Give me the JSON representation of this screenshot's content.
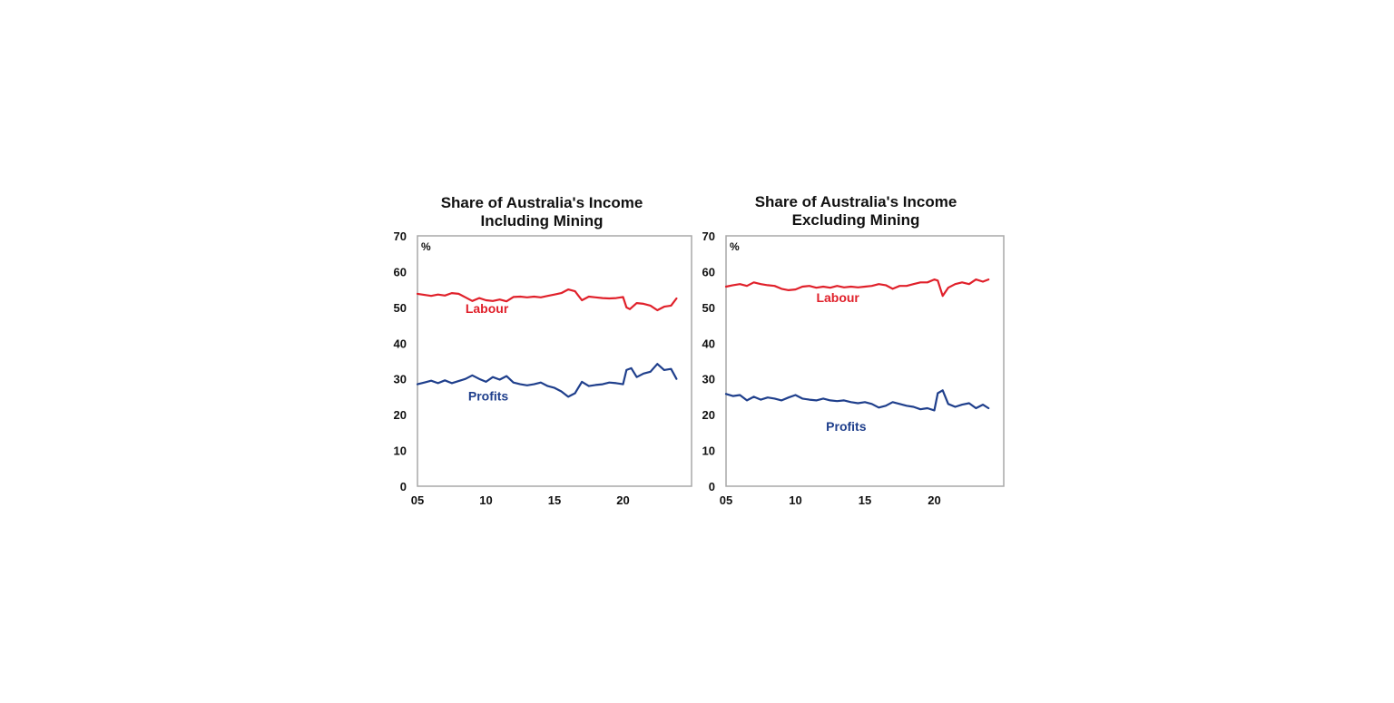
{
  "chart_data": [
    {
      "type": "line",
      "title": [
        "Share of Australia's Income",
        "Including Mining"
      ],
      "unit_label": "%",
      "x_tick_labels": [
        "05",
        "10",
        "15",
        "20"
      ],
      "x_ticks": [
        2005,
        2010,
        2015,
        2020
      ],
      "xlim": [
        2005,
        2025
      ],
      "y_ticks": [
        0,
        10,
        20,
        30,
        40,
        50,
        60,
        70
      ],
      "ylim": [
        0,
        70
      ],
      "grid": false,
      "series": [
        {
          "name": "Labour",
          "color": "#e0202a",
          "x": [
            2005.0,
            2005.5,
            2006.0,
            2006.5,
            2007.0,
            2007.5,
            2008.0,
            2008.5,
            2009.0,
            2009.5,
            2010.0,
            2010.5,
            2011.0,
            2011.5,
            2012.0,
            2012.5,
            2013.0,
            2013.5,
            2014.0,
            2014.5,
            2015.0,
            2015.5,
            2016.0,
            2016.5,
            2017.0,
            2017.5,
            2018.0,
            2018.5,
            2019.0,
            2019.5,
            2020.0,
            2020.25,
            2020.5,
            2021.0,
            2021.5,
            2022.0,
            2022.5,
            2023.0,
            2023.5,
            2023.9
          ],
          "values": [
            53.8,
            53.5,
            53.2,
            53.6,
            53.3,
            54.0,
            53.8,
            52.8,
            51.8,
            52.6,
            52.0,
            51.8,
            52.2,
            51.7,
            52.9,
            53.0,
            52.8,
            53.0,
            52.8,
            53.2,
            53.6,
            54.0,
            55.0,
            54.5,
            52.0,
            53.0,
            52.8,
            52.6,
            52.5,
            52.6,
            52.9,
            50.0,
            49.5,
            51.2,
            51.0,
            50.5,
            49.2,
            50.2,
            50.5,
            52.5
          ]
        },
        {
          "name": "Profits",
          "color": "#1f3f8c",
          "x": [
            2005.0,
            2005.5,
            2006.0,
            2006.5,
            2007.0,
            2007.5,
            2008.0,
            2008.5,
            2009.0,
            2009.5,
            2010.0,
            2010.5,
            2011.0,
            2011.5,
            2012.0,
            2012.5,
            2013.0,
            2013.5,
            2014.0,
            2014.5,
            2015.0,
            2015.5,
            2016.0,
            2016.5,
            2017.0,
            2017.5,
            2018.0,
            2018.5,
            2019.0,
            2019.5,
            2020.0,
            2020.25,
            2020.6,
            2021.0,
            2021.5,
            2022.0,
            2022.5,
            2023.0,
            2023.5,
            2023.9
          ],
          "values": [
            28.5,
            29.0,
            29.5,
            28.8,
            29.6,
            28.8,
            29.4,
            30.0,
            31.0,
            30.0,
            29.2,
            30.5,
            29.8,
            30.8,
            29.0,
            28.5,
            28.2,
            28.5,
            29.0,
            28.0,
            27.5,
            26.5,
            25.0,
            26.0,
            29.2,
            28.0,
            28.3,
            28.5,
            29.0,
            28.8,
            28.5,
            32.5,
            33.0,
            30.5,
            31.5,
            32.0,
            34.2,
            32.5,
            32.8,
            30.0
          ]
        }
      ]
    },
    {
      "type": "line",
      "title": [
        "Share of Australia's Income",
        "Excluding Mining"
      ],
      "unit_label": "%",
      "x_tick_labels": [
        "05",
        "10",
        "15",
        "20"
      ],
      "x_ticks": [
        2005,
        2010,
        2015,
        2020
      ],
      "xlim": [
        2005,
        2025
      ],
      "y_ticks": [
        0,
        10,
        20,
        30,
        40,
        50,
        60,
        70
      ],
      "ylim": [
        0,
        70
      ],
      "grid": false,
      "series": [
        {
          "name": "Labour",
          "color": "#e0202a",
          "x": [
            2005.0,
            2005.5,
            2006.0,
            2006.5,
            2007.0,
            2007.5,
            2008.0,
            2008.5,
            2009.0,
            2009.5,
            2010.0,
            2010.5,
            2011.0,
            2011.5,
            2012.0,
            2012.5,
            2013.0,
            2013.5,
            2014.0,
            2014.5,
            2015.0,
            2015.5,
            2016.0,
            2016.5,
            2017.0,
            2017.5,
            2018.0,
            2018.5,
            2019.0,
            2019.5,
            2020.0,
            2020.25,
            2020.6,
            2021.0,
            2021.5,
            2022.0,
            2022.5,
            2023.0,
            2023.5,
            2023.9
          ],
          "values": [
            55.8,
            56.2,
            56.5,
            56.0,
            57.0,
            56.5,
            56.2,
            56.0,
            55.2,
            54.8,
            55.0,
            55.8,
            56.0,
            55.5,
            55.8,
            55.5,
            56.0,
            55.6,
            55.8,
            55.6,
            55.8,
            56.0,
            56.5,
            56.2,
            55.2,
            56.0,
            56.0,
            56.5,
            57.0,
            57.0,
            57.8,
            57.5,
            53.2,
            55.5,
            56.5,
            57.0,
            56.5,
            57.8,
            57.2,
            57.8
          ]
        },
        {
          "name": "Profits",
          "color": "#1f3f8c",
          "x": [
            2005.0,
            2005.5,
            2006.0,
            2006.5,
            2007.0,
            2007.5,
            2008.0,
            2008.5,
            2009.0,
            2009.5,
            2010.0,
            2010.5,
            2011.0,
            2011.5,
            2012.0,
            2012.5,
            2013.0,
            2013.5,
            2014.0,
            2014.5,
            2015.0,
            2015.5,
            2016.0,
            2016.5,
            2017.0,
            2017.5,
            2018.0,
            2018.5,
            2019.0,
            2019.5,
            2020.0,
            2020.25,
            2020.6,
            2021.0,
            2021.5,
            2022.0,
            2022.5,
            2023.0,
            2023.5,
            2023.9
          ],
          "values": [
            25.8,
            25.2,
            25.5,
            24.0,
            25.0,
            24.2,
            24.8,
            24.5,
            24.0,
            24.8,
            25.5,
            24.5,
            24.2,
            24.0,
            24.5,
            24.0,
            23.8,
            24.0,
            23.5,
            23.2,
            23.5,
            23.0,
            22.0,
            22.5,
            23.5,
            23.0,
            22.5,
            22.2,
            21.5,
            21.8,
            21.2,
            26.0,
            26.8,
            23.0,
            22.2,
            22.8,
            23.2,
            21.8,
            22.8,
            21.8
          ]
        }
      ]
    }
  ]
}
